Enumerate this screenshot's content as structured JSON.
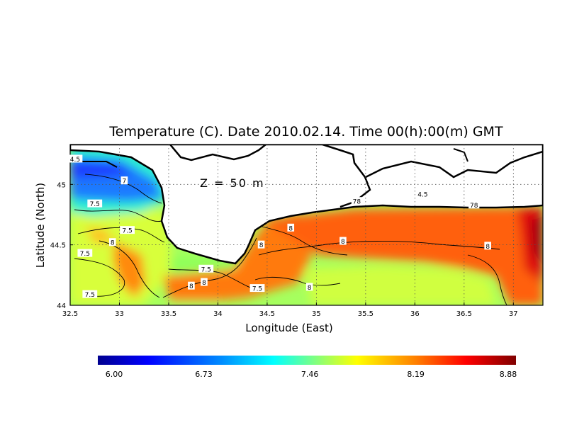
{
  "title": "Temperature (C). Date 2010.02.14. Time 00(h):00(m) GMT",
  "depth_label": "Z = 50 m",
  "chart_data": {
    "type": "heatmap",
    "xlabel": "Longitude (East)",
    "ylabel": "Latitude (North)",
    "xlim": [
      32.5,
      37.3
    ],
    "ylim": [
      44.0,
      45.33
    ],
    "x_ticks": [
      "32.5",
      "33",
      "33.5",
      "34",
      "34.5",
      "35",
      "35.5",
      "36",
      "36.5",
      "37"
    ],
    "x_tick_values": [
      32.5,
      33,
      33.5,
      34,
      34.5,
      35,
      35.5,
      36,
      36.5,
      37
    ],
    "y_ticks": [
      "44",
      "44.5",
      "45"
    ],
    "y_tick_values": [
      44,
      44.5,
      45
    ],
    "grid": true,
    "colorbar": {
      "min": 6.0,
      "max": 8.88,
      "tick_labels": [
        "6.00",
        "6.73",
        "7.46",
        "8.19",
        "8.88"
      ],
      "tick_values": [
        6.0,
        6.73,
        7.46,
        8.19,
        8.88
      ],
      "colors": [
        "#00008f",
        "#0000ff",
        "#0080ff",
        "#00ffff",
        "#80ff80",
        "#ffff00",
        "#ff8000",
        "#ff0000",
        "#800000"
      ]
    },
    "contour_labels": [
      {
        "text": "4.5",
        "lon": 32.55,
        "lat": 45.21
      },
      {
        "text": "7",
        "lon": 33.05,
        "lat": 45.03
      },
      {
        "text": "7.5",
        "lon": 32.75,
        "lat": 44.84
      },
      {
        "text": "7.5",
        "lon": 33.08,
        "lat": 44.62
      },
      {
        "text": "8",
        "lon": 32.93,
        "lat": 44.52
      },
      {
        "text": "7.5",
        "lon": 32.65,
        "lat": 44.43
      },
      {
        "text": "7.5",
        "lon": 32.7,
        "lat": 44.09
      },
      {
        "text": "7.5",
        "lon": 33.88,
        "lat": 44.3
      },
      {
        "text": "8",
        "lon": 33.73,
        "lat": 44.16
      },
      {
        "text": "8",
        "lon": 33.86,
        "lat": 44.19
      },
      {
        "text": "7.5",
        "lon": 34.4,
        "lat": 44.14
      },
      {
        "text": "8",
        "lon": 34.93,
        "lat": 44.15
      },
      {
        "text": "8",
        "lon": 34.44,
        "lat": 44.5
      },
      {
        "text": "8",
        "lon": 34.74,
        "lat": 44.64
      },
      {
        "text": "8",
        "lon": 35.27,
        "lat": 44.53
      },
      {
        "text": "78",
        "lon": 35.41,
        "lat": 44.86
      },
      {
        "text": "4.5",
        "lon": 36.08,
        "lat": 44.92
      },
      {
        "text": "78",
        "lon": 36.6,
        "lat": 44.83
      },
      {
        "text": "8",
        "lon": 36.74,
        "lat": 44.49
      }
    ]
  }
}
